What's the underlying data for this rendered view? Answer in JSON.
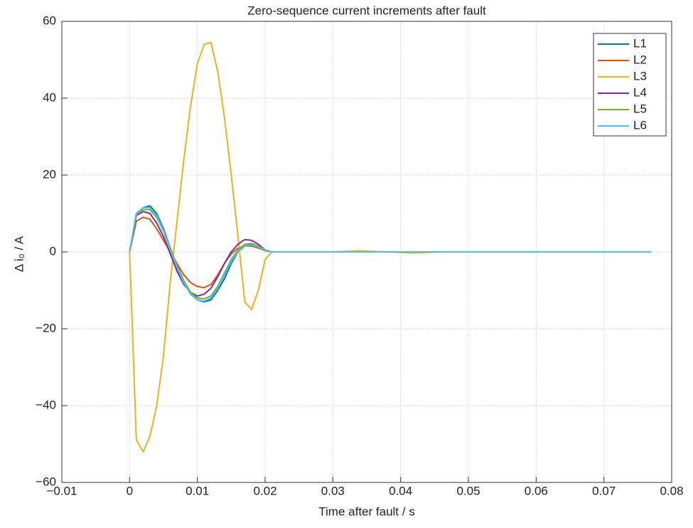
{
  "chart_data": {
    "type": "line",
    "title": "Zero-sequence current increments after fault",
    "xlabel": "Time after fault / s",
    "ylabel": "Δ i₀ / A",
    "x": [
      0,
      0.001,
      0.002,
      0.003,
      0.004,
      0.005,
      0.006,
      0.007,
      0.008,
      0.009,
      0.01,
      0.011,
      0.012,
      0.013,
      0.014,
      0.015,
      0.016,
      0.017,
      0.018,
      0.019,
      0.02,
      0.021,
      0.03,
      0.034,
      0.038,
      0.042,
      0.046,
      0.05,
      0.077
    ],
    "series": [
      {
        "name": "L1",
        "color": "#0072bd",
        "values": [
          0,
          10,
          11.5,
          12,
          10,
          6,
          1,
          -4,
          -8,
          -11,
          -12.5,
          -13,
          -12.5,
          -10,
          -7,
          -3,
          0,
          1.5,
          2,
          1.5,
          0.5,
          0,
          0,
          0,
          0,
          0,
          0,
          0,
          0
        ]
      },
      {
        "name": "L2",
        "color": "#d95319",
        "values": [
          0,
          8,
          9,
          8.5,
          6,
          3,
          0,
          -3,
          -6,
          -8,
          -9,
          -9.3,
          -8.5,
          -6,
          -3,
          -0.5,
          1,
          1.5,
          1.5,
          1,
          0.3,
          0,
          0,
          0,
          0,
          0,
          0,
          0,
          0
        ]
      },
      {
        "name": "L3",
        "color": "#edb120",
        "values": [
          0,
          -49,
          -52,
          -48,
          -40,
          -27,
          -8,
          8,
          24,
          38,
          49,
          54,
          54.5,
          47,
          35,
          20,
          4,
          -13,
          -15,
          -10,
          -2,
          0,
          0,
          0.3,
          0,
          -0.3,
          0,
          0,
          0
        ]
      },
      {
        "name": "L4",
        "color": "#7e2f8e",
        "values": [
          0,
          9.5,
          10.5,
          10,
          7.5,
          4,
          -0.5,
          -5,
          -8.5,
          -10.5,
          -11.5,
          -11,
          -9.5,
          -6.5,
          -3,
          0,
          2,
          3.2,
          3,
          2,
          0.5,
          0,
          0,
          0,
          0,
          0,
          0,
          0,
          0
        ]
      },
      {
        "name": "L5",
        "color": "#77ac30",
        "values": [
          0,
          10,
          11,
          11,
          9,
          5.5,
          1,
          -3.5,
          -7.5,
          -10.5,
          -12,
          -12.2,
          -11.5,
          -9,
          -5.5,
          -2,
          0.5,
          2,
          2.2,
          1.5,
          0.5,
          0,
          0,
          0,
          0,
          0,
          0,
          0,
          0
        ]
      },
      {
        "name": "L6",
        "color": "#4dbeee",
        "values": [
          0,
          10,
          11.5,
          11.5,
          9.5,
          5.5,
          0.5,
          -4,
          -8,
          -11,
          -12.5,
          -12.8,
          -12,
          -9.5,
          -6,
          -2.5,
          0,
          1.5,
          1.8,
          1.3,
          0.4,
          0,
          0,
          0,
          0,
          0,
          0,
          0,
          0
        ]
      }
    ],
    "xlim": [
      -0.01,
      0.08
    ],
    "xticks": [
      {
        "value": -0.01,
        "label": "−0.01"
      },
      0,
      0.01,
      0.02,
      0.03,
      0.04,
      0.05,
      0.06,
      0.07,
      0.08
    ],
    "ylim": [
      -60,
      60
    ],
    "yticks": [
      {
        "value": -60,
        "label": "−60"
      },
      {
        "value": -40,
        "label": "−40"
      },
      {
        "value": -20,
        "label": "−20"
      },
      0,
      20,
      40,
      60
    ],
    "grid": true,
    "legend": "northeast"
  }
}
